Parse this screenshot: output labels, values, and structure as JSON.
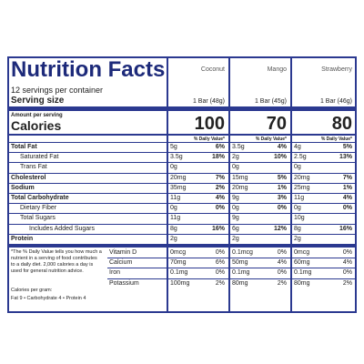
{
  "title": "Nutrition Facts",
  "products": [
    "Coconut",
    "Mango",
    "Strawberry"
  ],
  "servings": "12 servings per container",
  "serving_size": {
    "label": "Serving size",
    "values": [
      "1 Bar (48g)",
      "1 Bar (45g)",
      "1 Bar (46g)"
    ]
  },
  "amount_per_serving": "Amount per serving",
  "calories": {
    "label": "Calories",
    "values": [
      100,
      70,
      80
    ]
  },
  "dv_header": "% Daily Value*",
  "nutrients": [
    {
      "label": "Total Fat",
      "amounts": [
        "5g",
        "3.5g",
        "4g"
      ],
      "dv": [
        "6%",
        "4%",
        "5%"
      ],
      "sub": [
        {
          "label": "Saturated Fat",
          "amounts": [
            "3.5g",
            "2g",
            "2.5g"
          ],
          "dv": [
            "18%",
            "10%",
            "13%"
          ]
        },
        {
          "label": "Trans Fat",
          "amounts": [
            "0g",
            "0g",
            "0g"
          ],
          "dv": [
            null,
            null,
            null
          ]
        }
      ]
    },
    {
      "label": "Cholesterol",
      "amounts": [
        "20mg",
        "15mg",
        "20mg"
      ],
      "dv": [
        "7%",
        "5%",
        "7%"
      ]
    },
    {
      "label": "Sodium",
      "amounts": [
        "35mg",
        "20mg",
        "25mg"
      ],
      "dv": [
        "2%",
        "1%",
        "1%"
      ]
    },
    {
      "label": "Total Carbohydrate",
      "amounts": [
        "11g",
        "9g",
        "11g"
      ],
      "dv": [
        "4%",
        "3%",
        "4%"
      ],
      "sub": [
        {
          "label": "Dietary Fiber",
          "amounts": [
            "0g",
            "0g",
            "0g"
          ],
          "dv": [
            "0%",
            "0%",
            "0%"
          ]
        },
        {
          "label": "Total Sugars",
          "amounts": [
            "11g",
            "9g",
            "10g"
          ],
          "dv": [
            null,
            null,
            null
          ],
          "sub": [
            {
              "label": "Includes Added Sugars",
              "amounts": [
                "8g",
                "6g",
                "8g"
              ],
              "dv": [
                "16%",
                "12%",
                "16%"
              ]
            }
          ]
        }
      ]
    },
    {
      "label": "Protein",
      "amounts": [
        "2g",
        "2g",
        "2g"
      ],
      "dv": [
        null,
        null,
        null
      ]
    }
  ],
  "vitamins": [
    {
      "label": "Vitamin D",
      "amounts": [
        "0mcg",
        "0.1mcg",
        "0mcg"
      ],
      "dv": [
        "0%",
        "0%",
        "0%"
      ]
    },
    {
      "label": "Calcium",
      "amounts": [
        "70mg",
        "50mg",
        "60mg"
      ],
      "dv": [
        "6%",
        "4%",
        "4%"
      ]
    },
    {
      "label": "Iron",
      "amounts": [
        "0.1mg",
        "0.1mg",
        "0.1mg"
      ],
      "dv": [
        "0%",
        "0%",
        "0%"
      ]
    },
    {
      "label": "Potassium",
      "amounts": [
        "100mg",
        "80mg",
        "80mg"
      ],
      "dv": [
        "2%",
        "2%",
        "2%"
      ]
    }
  ],
  "footnote": "*The % Daily Value tells you how much a nutrient in a serving of food contributes to a daily diet. 2,000 calories a day is used for general nutrition advice.",
  "calories_per_gram": {
    "label": "Calories per gram:",
    "items": [
      "Fat 9",
      "Carbohydrate 4",
      "Protein 4"
    ]
  }
}
